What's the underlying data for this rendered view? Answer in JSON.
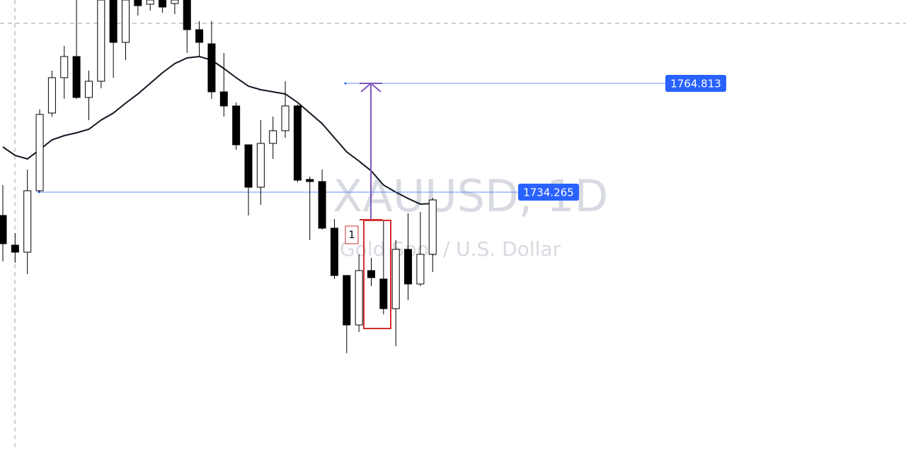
{
  "chart_data": {
    "type": "candlestick",
    "title": "XAUUSD, 1D",
    "subtitle": "Gold Spot / U.S. Dollar",
    "ylim": [
      1661.86,
      1788.22
    ],
    "open": [
      1727.72,
      1719.39,
      1717.41,
      1734.66,
      1756.48,
      1766.4,
      1772.35,
      1760.85,
      1765.41,
      1788.22,
      1776.32,
      1788.22,
      1787.03,
      1788.22,
      1787.23,
      1788.22,
      1779.89,
      1775.92,
      1762.43,
      1758.47,
      1747.56,
      1735.65,
      1747.95,
      1751.52,
      1758.47,
      1737.84,
      1737.24,
      1724.15,
      1710.86,
      1696.97,
      1712.24,
      1709.87,
      1701.55,
      1718.2,
      1708.48,
      1716.81
    ],
    "high": [
      1736.25,
      1722.76,
      1740.63,
      1757.47,
      1768.38,
      1775.33,
      1788.22,
      1768.38,
      1788.22,
      1788.22,
      1788.22,
      1788.22,
      1788.22,
      1788.22,
      1788.22,
      1788.22,
      1782.27,
      1782.27,
      1773.34,
      1759.46,
      1747.56,
      1754.5,
      1755.49,
      1765.41,
      1758.86,
      1738.63,
      1740.63,
      1726.73,
      1710.86,
      1716.81,
      1715.82,
      1726.33,
      1720.78,
      1728.31,
      1728.71,
      1732.68
    ],
    "low": [
      1714.83,
      1714.43,
      1711.26,
      1734.27,
      1755.49,
      1760.45,
      1760.45,
      1754.5,
      1763.43,
      1766.4,
      1771.36,
      1783.86,
      1785.24,
      1784.65,
      1784.25,
      1773.34,
      1772.35,
      1760.45,
      1755.49,
      1746.17,
      1727.72,
      1730.7,
      1743.59,
      1749.54,
      1737.04,
      1720.78,
      1723.75,
      1709.87,
      1689.04,
      1694.99,
      1707.88,
      1699.95,
      1691.02,
      1703.92,
      1707.88,
      1711.85
    ],
    "close": [
      1719.79,
      1717.41,
      1734.66,
      1756.09,
      1766.4,
      1772.35,
      1760.85,
      1765.41,
      1788.22,
      1776.32,
      1788.22,
      1786.63,
      1788.22,
      1786.24,
      1788.22,
      1779.89,
      1776.32,
      1762.43,
      1758.47,
      1747.56,
      1735.65,
      1747.95,
      1751.52,
      1758.47,
      1737.64,
      1737.24,
      1724.15,
      1710.86,
      1696.97,
      1712.24,
      1710.26,
      1701.55,
      1718.2,
      1708.48,
      1716.81,
      1732.08
    ],
    "ma": {
      "color": "#131722",
      "values": [
        1746.96,
        1744.58,
        1743.59,
        1746.17,
        1748.94,
        1750.13,
        1750.93,
        1751.92,
        1754.5,
        1756.48,
        1759.26,
        1761.84,
        1764.81,
        1767.79,
        1770.37,
        1771.95,
        1772.35,
        1771.36,
        1768.98,
        1766.4,
        1764.02,
        1763.03,
        1762.43,
        1761.84,
        1759.46,
        1756.48,
        1753.51,
        1749.54,
        1745.57,
        1742.99,
        1740.22,
        1736.25,
        1734.27,
        1732.48,
        1730.9,
        1731.1
      ]
    },
    "levels": [
      1764.813,
      1734.265
    ],
    "level_color": "#2962ff",
    "annotation": "1"
  }
}
